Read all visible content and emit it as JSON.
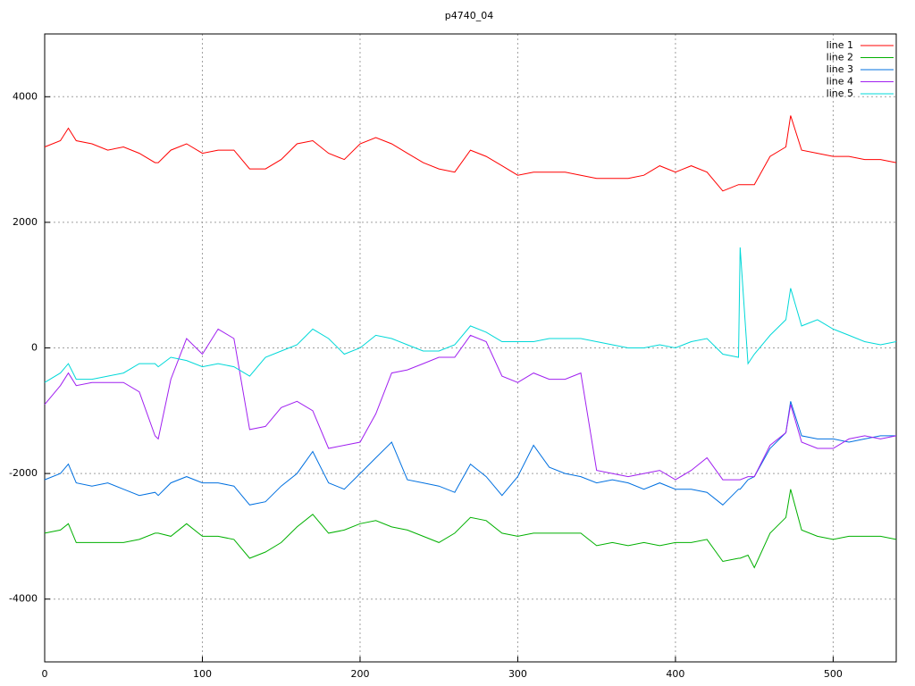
{
  "chart_data": {
    "type": "line",
    "title": "p4740_04",
    "x": [
      0,
      10,
      15,
      20,
      30,
      40,
      50,
      60,
      70,
      72,
      80,
      90,
      100,
      110,
      120,
      130,
      140,
      150,
      160,
      170,
      180,
      190,
      200,
      210,
      220,
      230,
      240,
      250,
      260,
      270,
      280,
      290,
      300,
      310,
      320,
      330,
      340,
      350,
      360,
      370,
      380,
      390,
      400,
      410,
      420,
      430,
      440,
      441,
      446,
      450,
      460,
      470,
      473,
      480,
      490,
      500,
      510,
      520,
      530,
      540
    ],
    "series": [
      {
        "name": "line 1",
        "color": "#ff0000",
        "values": [
          3200,
          3300,
          3500,
          3300,
          3250,
          3150,
          3200,
          3100,
          2950,
          2950,
          3150,
          3250,
          3100,
          3150,
          3150,
          2850,
          2850,
          3000,
          3250,
          3300,
          3100,
          3000,
          3250,
          3350,
          3250,
          3100,
          2950,
          2850,
          2800,
          3150,
          3050,
          2900,
          2750,
          2800,
          2800,
          2800,
          2750,
          2700,
          2700,
          2700,
          2750,
          2900,
          2800,
          2900,
          2800,
          2500,
          2600,
          2600,
          2600,
          2600,
          3050,
          3200,
          3700,
          3150,
          3100,
          3050,
          3050,
          3000,
          3000,
          2950
        ]
      },
      {
        "name": "line 2",
        "color": "#00b000",
        "values": [
          -2950,
          -2900,
          -2800,
          -3100,
          -3100,
          -3100,
          -3100,
          -3050,
          -2950,
          -2950,
          -3000,
          -2800,
          -3000,
          -3000,
          -3050,
          -3350,
          -3250,
          -3100,
          -2850,
          -2650,
          -2950,
          -2900,
          -2800,
          -2750,
          -2850,
          -2900,
          -3000,
          -3100,
          -2950,
          -2700,
          -2750,
          -2950,
          -3000,
          -2950,
          -2950,
          -2950,
          -2950,
          -3150,
          -3100,
          -3150,
          -3100,
          -3150,
          -3100,
          -3100,
          -3050,
          -3400,
          -3350,
          -3350,
          -3300,
          -3500,
          -2950,
          -2700,
          -2250,
          -2900,
          -3000,
          -3050,
          -3000,
          -3000,
          -3000,
          -3050
        ]
      },
      {
        "name": "line 3",
        "color": "#0070e0",
        "values": [
          -2100,
          -2000,
          -1850,
          -2150,
          -2200,
          -2150,
          -2250,
          -2350,
          -2300,
          -2350,
          -2150,
          -2050,
          -2150,
          -2150,
          -2200,
          -2500,
          -2450,
          -2200,
          -2000,
          -1650,
          -2150,
          -2250,
          -2000,
          -1750,
          -1500,
          -2100,
          -2150,
          -2200,
          -2300,
          -1850,
          -2050,
          -2350,
          -2050,
          -1550,
          -1900,
          -2000,
          -2050,
          -2150,
          -2100,
          -2150,
          -2250,
          -2150,
          -2250,
          -2250,
          -2300,
          -2500,
          -2250,
          -2250,
          -2100,
          -2050,
          -1600,
          -1350,
          -850,
          -1400,
          -1450,
          -1450,
          -1500,
          -1450,
          -1400,
          -1400
        ]
      },
      {
        "name": "line 4",
        "color": "#a020f0",
        "values": [
          -900,
          -600,
          -400,
          -600,
          -550,
          -550,
          -550,
          -700,
          -1400,
          -1450,
          -500,
          150,
          -100,
          300,
          150,
          -1300,
          -1250,
          -950,
          -850,
          -1000,
          -1600,
          -1550,
          -1500,
          -1050,
          -400,
          -350,
          -250,
          -150,
          -150,
          200,
          100,
          -450,
          -550,
          -400,
          -500,
          -500,
          -400,
          -1950,
          -2000,
          -2050,
          -2000,
          -1950,
          -2100,
          -1950,
          -1750,
          -2100,
          -2100,
          -2100,
          -2050,
          -2050,
          -1550,
          -1350,
          -900,
          -1500,
          -1600,
          -1600,
          -1450,
          -1400,
          -1450,
          -1400
        ]
      },
      {
        "name": "line 5",
        "color": "#00d8d8",
        "values": [
          -550,
          -400,
          -250,
          -500,
          -500,
          -450,
          -400,
          -250,
          -250,
          -300,
          -150,
          -200,
          -300,
          -250,
          -300,
          -450,
          -150,
          -50,
          50,
          300,
          150,
          -100,
          0,
          200,
          150,
          50,
          -50,
          -50,
          50,
          350,
          250,
          100,
          100,
          100,
          150,
          150,
          150,
          100,
          50,
          0,
          0,
          50,
          0,
          100,
          150,
          -100,
          -150,
          1600,
          -250,
          -100,
          200,
          450,
          950,
          350,
          450,
          300,
          200,
          100,
          50,
          100
        ]
      }
    ],
    "xlim": [
      0,
      540
    ],
    "ylim": [
      -5000,
      5000
    ],
    "xticks": [
      0,
      100,
      200,
      300,
      400,
      500
    ],
    "yticks": [
      -4000,
      -2000,
      0,
      2000,
      4000
    ],
    "grid": true,
    "legend": "top-right"
  }
}
